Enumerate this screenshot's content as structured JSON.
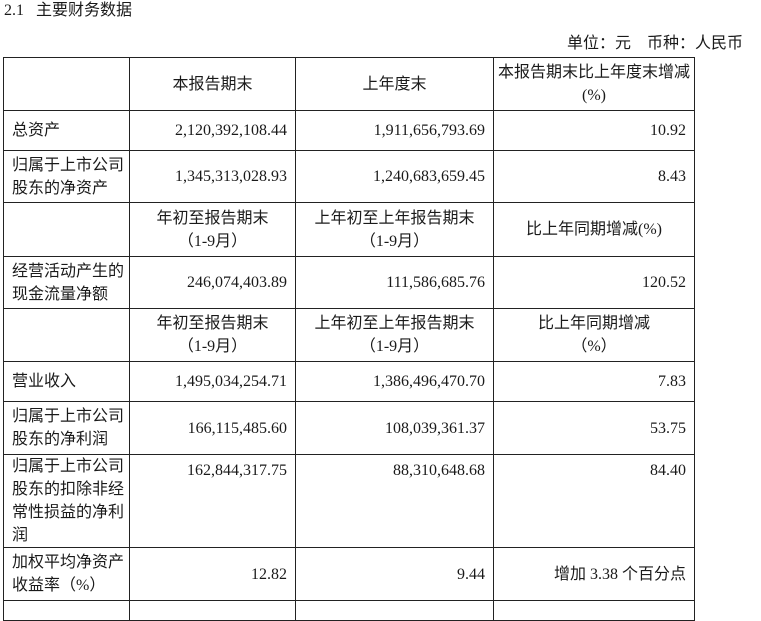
{
  "section": {
    "number": "2.1",
    "title": "主要财务数据"
  },
  "unit_note": "单位：元　币种：人民币",
  "table": {
    "header1": [
      "",
      "本报告期末",
      "上年度末",
      "本报告期末比上年度末增减(%)"
    ],
    "rows1": [
      {
        "label": "总资产",
        "values": [
          "2,120,392,108.44",
          "1,911,656,793.69",
          "10.92"
        ]
      },
      {
        "label": "归属于上市公司股东的净资产",
        "values": [
          "1,345,313,028.93",
          "1,240,683,659.45",
          "8.43"
        ]
      }
    ],
    "header2": [
      "",
      "年初至报告期末（1-9月）",
      "上年初至上年报告期末（1-9月）",
      "比上年同期增减(%)"
    ],
    "rows2": [
      {
        "label": "经营活动产生的现金流量净额",
        "values": [
          "246,074,403.89",
          "111,586,685.76",
          "120.52"
        ]
      }
    ],
    "header3": [
      "",
      "年初至报告期末（1-9月）",
      "上年初至上年报告期末（1-9月）",
      "比上年同期增减（%）"
    ],
    "rows3": [
      {
        "label": "营业收入",
        "values": [
          "1,495,034,254.71",
          "1,386,496,470.70",
          "7.83"
        ]
      },
      {
        "label": "归属于上市公司股东的净利润",
        "values": [
          "166,115,485.60",
          "108,039,361.37",
          "53.75"
        ]
      },
      {
        "label": "归属于上市公司股东的扣除非经常性损益的净利润",
        "values": [
          "162,844,317.75",
          "88,310,648.68",
          "84.40"
        ]
      },
      {
        "label": "加权平均净资产收益率（%）",
        "values": [
          "12.82",
          "9.44",
          "增加 3.38 个百分点"
        ]
      }
    ]
  }
}
